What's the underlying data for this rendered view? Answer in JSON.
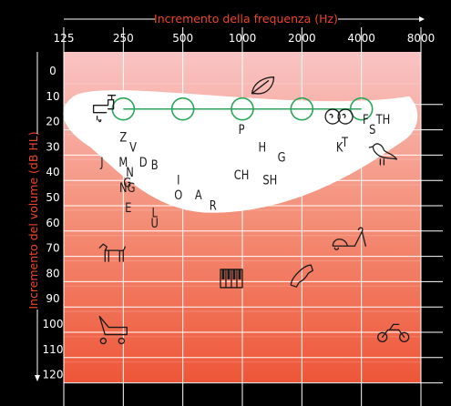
{
  "chart_data": {
    "type": "scatter",
    "title_x": "Incremento della frequenza (Hz)",
    "title_y": "Incremento del volume (dB HL)",
    "x_ticks": [
      "125",
      "250",
      "500",
      "1000",
      "2000",
      "4000",
      "8000"
    ],
    "y_ticks": [
      "0",
      "10",
      "20",
      "30",
      "40",
      "50",
      "60",
      "70",
      "80",
      "90",
      "100",
      "110",
      "120"
    ],
    "x_scale": "log2",
    "ylim": [
      -5,
      120
    ],
    "grid": true,
    "audiogram_points": [
      {
        "x": 250,
        "y": 15
      },
      {
        "x": 500,
        "y": 15
      },
      {
        "x": 1000,
        "y": 15
      },
      {
        "x": 2000,
        "y": 15
      },
      {
        "x": 4000,
        "y": 15
      }
    ],
    "phonemes": [
      {
        "text": "Z",
        "x": 250,
        "y": 26
      },
      {
        "text": "V",
        "x": 280,
        "y": 30
      },
      {
        "text": "J",
        "x": 195,
        "y": 36
      },
      {
        "text": "M",
        "x": 250,
        "y": 36
      },
      {
        "text": "D",
        "x": 315,
        "y": 36
      },
      {
        "text": "B",
        "x": 360,
        "y": 37
      },
      {
        "text": "N",
        "x": 270,
        "y": 40
      },
      {
        "text": "G",
        "x": 262,
        "y": 44
      },
      {
        "text": "NG",
        "x": 262,
        "y": 46
      },
      {
        "text": "E",
        "x": 265,
        "y": 54
      },
      {
        "text": "L",
        "x": 360,
        "y": 56
      },
      {
        "text": "U",
        "x": 360,
        "y": 60
      },
      {
        "text": "I",
        "x": 475,
        "y": 43
      },
      {
        "text": "O",
        "x": 475,
        "y": 49
      },
      {
        "text": "A",
        "x": 600,
        "y": 49
      },
      {
        "text": "R",
        "x": 710,
        "y": 53
      },
      {
        "text": "P",
        "x": 990,
        "y": 23
      },
      {
        "text": "H",
        "x": 1260,
        "y": 30
      },
      {
        "text": "G",
        "x": 1580,
        "y": 34
      },
      {
        "text": "CH",
        "x": 990,
        "y": 41
      },
      {
        "text": "SH",
        "x": 1380,
        "y": 43
      },
      {
        "text": "K",
        "x": 3100,
        "y": 30
      },
      {
        "text": "T",
        "x": 3300,
        "y": 28
      },
      {
        "text": "F",
        "x": 4200,
        "y": 19
      },
      {
        "text": "S",
        "x": 4550,
        "y": 23
      },
      {
        "text": "TH",
        "x": 5150,
        "y": 19
      }
    ],
    "icons": [
      {
        "name": "faucet-icon",
        "x": 205,
        "y": 15
      },
      {
        "name": "leaf-icon",
        "x": 1270,
        "y": 6
      },
      {
        "name": "people-whispering-icon",
        "x": 3050,
        "y": 18
      },
      {
        "name": "bird-icon",
        "x": 5200,
        "y": 32
      },
      {
        "name": "dog-icon",
        "x": 220,
        "y": 72
      },
      {
        "name": "vacuum-icon",
        "x": 3400,
        "y": 67
      },
      {
        "name": "piano-icon",
        "x": 880,
        "y": 82
      },
      {
        "name": "phone-icon",
        "x": 2000,
        "y": 81
      },
      {
        "name": "lawnmower-icon",
        "x": 220,
        "y": 102
      },
      {
        "name": "motorcycle-icon",
        "x": 5800,
        "y": 103
      }
    ],
    "colors": {
      "top": "#f9c8c8",
      "mid": "#f48a72",
      "bottom": "#ef5a3c",
      "point_ring": "#2aa65a",
      "axis_title": "#f0442a"
    }
  }
}
